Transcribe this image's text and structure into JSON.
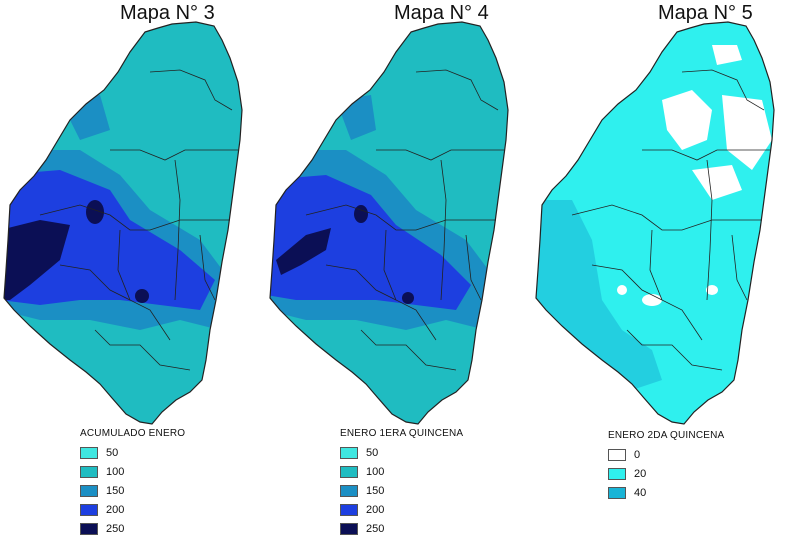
{
  "colors": {
    "c50": "#3fe7e1",
    "c100": "#1fbcc1",
    "c150": "#1b8fc4",
    "c200": "#1d3fe0",
    "c250": "#0b0f55",
    "c0": "#ffffff",
    "c20": "#2ff0ee",
    "c40": "#19b4d6",
    "border": "#222222"
  },
  "maps": [
    {
      "title": "Mapa N° 3",
      "legend_title": "ACUMULADO ENERO",
      "legend": [
        {
          "label": "50",
          "color": "#3fe7e1"
        },
        {
          "label": "100",
          "color": "#1fbcc1"
        },
        {
          "label": "150",
          "color": "#1b8fc4"
        },
        {
          "label": "200",
          "color": "#1d3fe0"
        },
        {
          "label": "250",
          "color": "#0b0f55"
        }
      ]
    },
    {
      "title": "Mapa N° 4",
      "legend_title": "ENERO 1ERA QUINCENA",
      "legend": [
        {
          "label": "50",
          "color": "#3fe7e1"
        },
        {
          "label": "100",
          "color": "#1fbcc1"
        },
        {
          "label": "150",
          "color": "#1b8fc4"
        },
        {
          "label": "200",
          "color": "#1d3fe0"
        },
        {
          "label": "250",
          "color": "#0b0f55"
        }
      ]
    },
    {
      "title": "Mapa N° 5",
      "legend_title": "ENERO 2DA QUINCENA",
      "legend": [
        {
          "label": "0",
          "color": "#ffffff"
        },
        {
          "label": "20",
          "color": "#2ff0ee"
        },
        {
          "label": "40",
          "color": "#19b4d6"
        }
      ]
    }
  ]
}
